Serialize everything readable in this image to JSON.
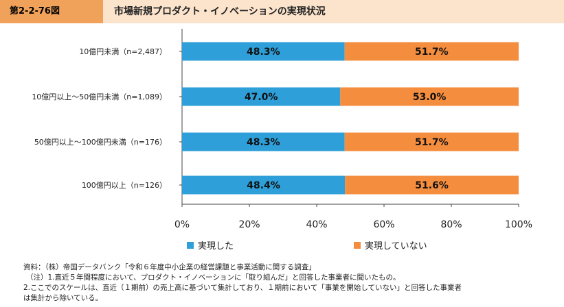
{
  "figure_number": "第2-2-76図",
  "figure_title": "市場新規プロダクト・イノベーションの実現状況",
  "colors": {
    "series_1": "#2e9fd8",
    "series_2": "#f58d3e",
    "header_bg": "#fbe3cc",
    "header_tag": "#f0a25a"
  },
  "chart_data": {
    "type": "bar",
    "orientation": "horizontal",
    "stacked": true,
    "categories": [
      "10億円未満（n=2,487）",
      "10億円以上～50億円未満（n=1,089）",
      "50億円以上～100億円未満（n=176）",
      "100億円以上（n=126）"
    ],
    "series": [
      {
        "name": "実現した",
        "values": [
          48.3,
          47.0,
          48.3,
          48.4
        ],
        "labels": [
          "48.3%",
          "47.0%",
          "48.3%",
          "48.4%"
        ]
      },
      {
        "name": "実現していない",
        "values": [
          51.7,
          53.0,
          51.7,
          51.6
        ],
        "labels": [
          "51.7%",
          "53.0%",
          "51.7%",
          "51.6%"
        ]
      }
    ],
    "xlim": [
      0,
      100
    ],
    "xticks": [
      "0%",
      "20%",
      "40%",
      "60%",
      "80%",
      "100%"
    ],
    "legend_position": "bottom",
    "grid": false
  },
  "legend": [
    "実現した",
    "実現していない"
  ],
  "source_notes": [
    "資料：（株）帝国データバンク「令和６年度中小企業の経営課題と事業活動に関する調査」",
    "（注）1.直近５年間程度において、プロダクト・イノベーションに「取り組んだ」と回答した事業者に聞いたもの。",
    "2.ここでのスケールは、直近（１期前）の売上高に基づいて集計しており、１期前において「事業を開始していない」と回答した事業者",
    "は集計から除いている。"
  ]
}
